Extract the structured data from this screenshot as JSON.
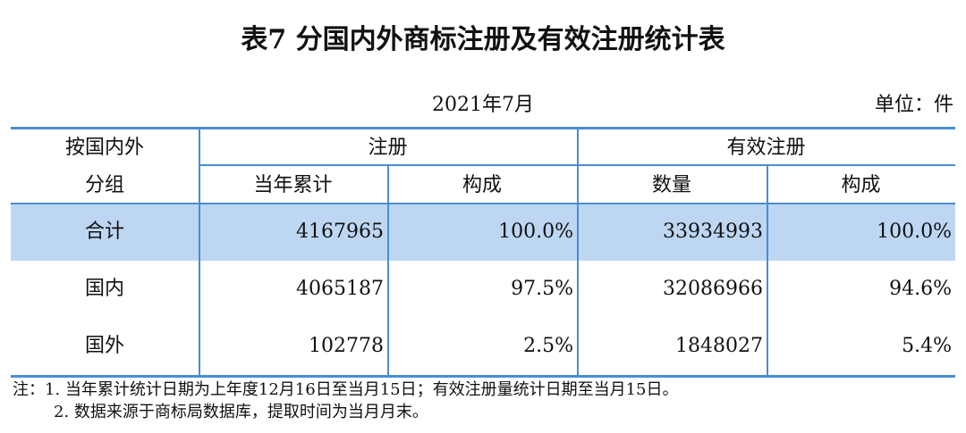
{
  "header": {
    "title": "表7 分国内外商标注册及有效注册统计表",
    "date": "2021年7月",
    "unit": "单位：件"
  },
  "table": {
    "header_rows": [
      [
        "按国内外",
        "注册",
        "有效注册"
      ],
      [
        "分组",
        "当年累计",
        "构成",
        "数量",
        "构成"
      ]
    ],
    "rows": [
      [
        "合计",
        "4167965",
        "100.0%",
        "33934993",
        "100.0%"
      ],
      [
        "国内",
        "4065187",
        "97.5%",
        "32086966",
        "94.6%"
      ],
      [
        "国外",
        "102778",
        "2.5%",
        "1848027",
        "5.4%"
      ]
    ]
  },
  "notes": [
    "注：1. 当年累计统计日期为上年度12月16日至当月15日；有效注册量统计日期至当月15日。",
    "2. 数据来源于商标局数据库，提取时间为当月月末。"
  ]
}
